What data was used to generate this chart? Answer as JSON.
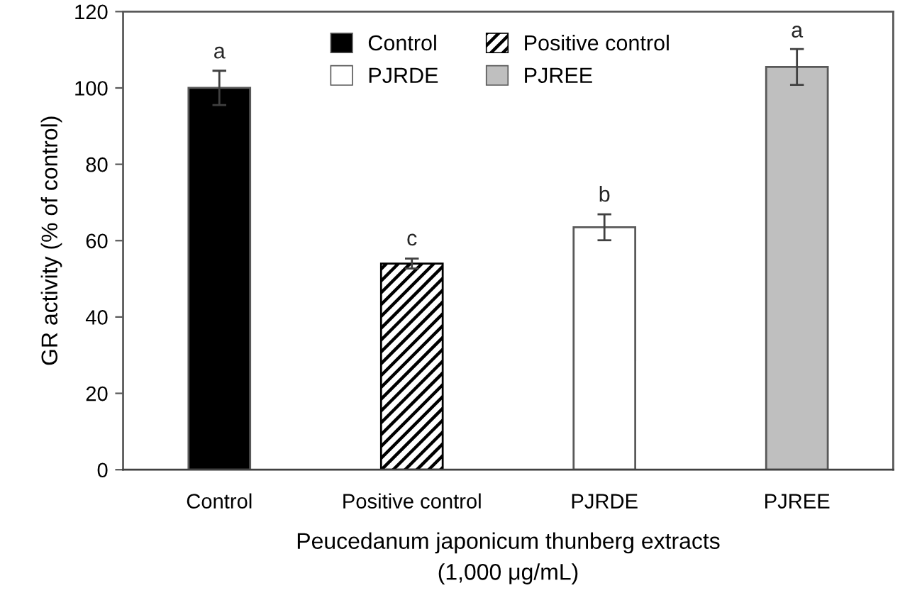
{
  "chart_data": {
    "type": "bar",
    "stacked": true,
    "categories": [
      "Control",
      "Positive control",
      "PJRDE",
      "PJREE"
    ],
    "series": [
      {
        "name": "Control",
        "color": "#000000",
        "values": [
          100,
          null,
          null,
          null
        ],
        "errors": [
          4.5,
          null,
          null,
          null
        ]
      },
      {
        "name": "Positive control",
        "color": "#000000",
        "values": [
          null,
          54,
          null,
          null
        ],
        "errors": [
          null,
          1.3,
          null,
          null
        ]
      },
      {
        "name": "PJRDE",
        "color": "#ffffff",
        "values": [
          null,
          null,
          63.5,
          null
        ],
        "errors": [
          null,
          null,
          3.4,
          null
        ]
      },
      {
        "name": "PJREE",
        "color": "#bfbfbf",
        "values": [
          null,
          null,
          null,
          105.5
        ],
        "errors": [
          null,
          null,
          null,
          4.7
        ]
      }
    ],
    "ylabel": "GR activity (% of control)",
    "xlabel": "Peucedanum japonicum thunberg extracts\n(1,000 μg/mL)",
    "ylim": [
      0,
      120
    ],
    "yticks": [
      0,
      20,
      40,
      60,
      80,
      100,
      120
    ],
    "annotations": [
      {
        "text": "a",
        "x": "Control",
        "y": 104.5
      },
      {
        "text": "c",
        "x": "Positive control",
        "y": 55.5
      },
      {
        "text": "b",
        "x": "PJRDE",
        "y": 67
      },
      {
        "text": "a",
        "x": "PJREE",
        "y": 110
      }
    ],
    "legend": "top",
    "grid": false
  }
}
